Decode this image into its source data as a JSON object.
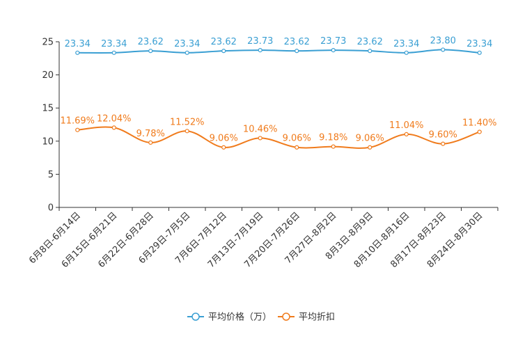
{
  "chart_data": {
    "type": "line",
    "title": "",
    "xlabel": "",
    "ylabel": "",
    "ylim": [
      0,
      25
    ],
    "yticks": [
      0,
      5,
      10,
      15,
      20,
      25
    ],
    "grid": false,
    "legend_position": "bottom-center",
    "categories": [
      "6月8日-6月14日",
      "6月15日-6月21日",
      "6月22日-6月28日",
      "6月29日-7月5日",
      "7月6日-7月12日",
      "7月13日-7月19日",
      "7月20日-7月26日",
      "7月27日-8月2日",
      "8月3日-8月9日",
      "8月10日-8月16日",
      "8月17日-8月23日",
      "8月24日-8月30日"
    ],
    "series": [
      {
        "name": "平均价格（万）",
        "color": "#3a9fd3",
        "values": [
          23.34,
          23.34,
          23.62,
          23.34,
          23.62,
          23.73,
          23.62,
          23.73,
          23.62,
          23.34,
          23.8,
          23.34
        ],
        "labels": [
          "23.34",
          "23.34",
          "23.62",
          "23.34",
          "23.62",
          "23.73",
          "23.62",
          "23.73",
          "23.62",
          "23.34",
          "23.80",
          "23.34"
        ]
      },
      {
        "name": "平均折扣",
        "color": "#f07b1c",
        "values": [
          11.69,
          12.04,
          9.78,
          11.52,
          9.06,
          10.46,
          9.06,
          9.18,
          9.06,
          11.04,
          9.6,
          11.4
        ],
        "labels": [
          "11.69%",
          "12.04%",
          "9.78%",
          "11.52%",
          "9.06%",
          "10.46%",
          "9.06%",
          "9.18%",
          "9.06%",
          "11.04%",
          "9.60%",
          "11.40%"
        ]
      }
    ]
  }
}
